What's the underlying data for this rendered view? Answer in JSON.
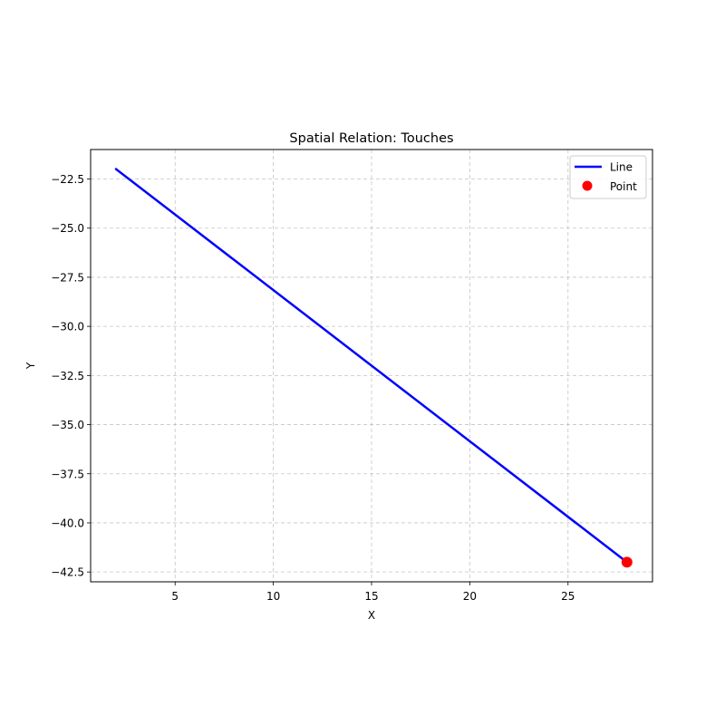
{
  "chart_data": {
    "type": "line",
    "title": "Spatial Relation: Touches",
    "xlabel": "X",
    "ylabel": "Y",
    "xlim": [
      0.7,
      29.3
    ],
    "ylim": [
      -43.0,
      -21.0
    ],
    "xticks": [
      5,
      10,
      15,
      20,
      25
    ],
    "yticks": [
      -42.5,
      -40.0,
      -37.5,
      -35.0,
      -32.5,
      -30.0,
      -27.5,
      -25.0,
      -22.5
    ],
    "xtick_labels": [
      "5",
      "10",
      "15",
      "20",
      "25"
    ],
    "ytick_labels": [
      "−42.5",
      "−40.0",
      "−37.5",
      "−35.0",
      "−32.5",
      "−30.0",
      "−27.5",
      "−25.0",
      "−22.5"
    ],
    "grid": true,
    "legend_position": "top-right",
    "series": [
      {
        "name": "Line",
        "kind": "line",
        "color": "#0000ff",
        "x": [
          2,
          28
        ],
        "y": [
          -22,
          -42
        ]
      },
      {
        "name": "Point",
        "kind": "point",
        "color": "#ff0000",
        "x": [
          28
        ],
        "y": [
          -42
        ]
      }
    ]
  }
}
